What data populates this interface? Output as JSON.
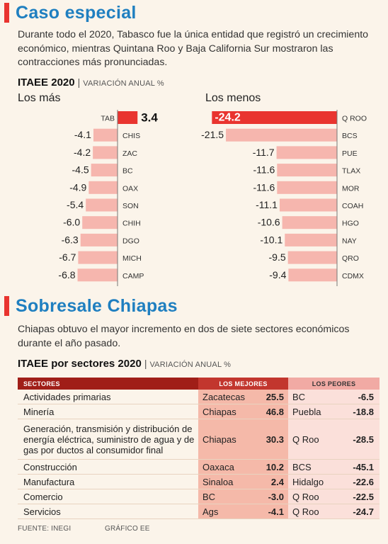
{
  "section1": {
    "title": "Caso especial",
    "lead": "Durante todo el 2020, Tabasco fue la única entidad que registró un crecimiento económico, mientras Quintana Roo y Baja California Sur mostraron las contracciones más pronunciadas."
  },
  "subhead1": {
    "bold": "ITAEE 2020",
    "sep": "|",
    "note": "VARIACIÓN ANUAL %"
  },
  "colors": {
    "bar_light": "#f6b6ae",
    "bar_strong": "#e9342f",
    "title_blue": "#1f7fc0",
    "accent_red": "#e9342f"
  },
  "chart_data": [
    {
      "type": "bar",
      "title": "Los más",
      "categories": [
        "TAB",
        "CHIS",
        "ZAC",
        "BC",
        "OAX",
        "SON",
        "CHIH",
        "DGO",
        "MICH",
        "CAMP"
      ],
      "values": [
        3.4,
        -4.1,
        -4.2,
        -4.5,
        -4.9,
        -5.4,
        -6.0,
        -6.3,
        -6.7,
        -6.8
      ],
      "labels": [
        "3.4",
        "-4.1",
        "-4.2",
        "-4.5",
        "-4.9",
        "-5.4",
        "-6.0",
        "-6.3",
        "-6.7",
        "-6.8"
      ]
    },
    {
      "type": "bar",
      "title": "Los menos",
      "categories": [
        "Q ROO",
        "BCS",
        "PUE",
        "TLAX",
        "MOR",
        "COAH",
        "HGO",
        "NAY",
        "QRO",
        "CDMX"
      ],
      "values": [
        -24.2,
        -21.5,
        -11.7,
        -11.6,
        -11.6,
        -11.1,
        -10.6,
        -10.1,
        -9.5,
        -9.4
      ],
      "labels": [
        "-24.2",
        "-21.5",
        "-11.7",
        "-11.6",
        "-11.6",
        "-11.1",
        "-10.6",
        "-10.1",
        "-9.5",
        "-9.4"
      ]
    }
  ],
  "section2": {
    "title": "Sobresale Chiapas",
    "lead": "Chiapas obtuvo el mayor incremento en dos de siete sectores económicos durante el año pasado."
  },
  "subhead2": {
    "bold": "ITAEE por sectores 2020",
    "sep": "|",
    "note": "VARIACIÓN ANUAL %"
  },
  "table": {
    "headers": {
      "sectors": "SECTORES",
      "best": "LOS MEJORES",
      "worst": "LOS PEORES"
    },
    "rows": [
      {
        "sector": "Actividades primarias",
        "best_state": "Zacatecas",
        "best_value": "25.5",
        "worst_state": "BC",
        "worst_value": "-6.5"
      },
      {
        "sector": "Minería",
        "best_state": "Chiapas",
        "best_value": "46.8",
        "worst_state": "Puebla",
        "worst_value": "-18.8"
      },
      {
        "sector": "Generación, transmisión y distribución de energía eléctrica, suministro de agua y de gas por ductos al consumidor final",
        "best_state": "Chiapas",
        "best_value": "30.3",
        "worst_state": "Q Roo",
        "worst_value": "-28.5"
      },
      {
        "sector": "Construcción",
        "best_state": "Oaxaca",
        "best_value": "10.2",
        "worst_state": "BCS",
        "worst_value": "-45.1"
      },
      {
        "sector": "Manufactura",
        "best_state": "Sinaloa",
        "best_value": "2.4",
        "worst_state": "Hidalgo",
        "worst_value": "-22.6"
      },
      {
        "sector": "Comercio",
        "best_state": "BC",
        "best_value": "-3.0",
        "worst_state": "Q Roo",
        "worst_value": "-22.5"
      },
      {
        "sector": "Servicios",
        "best_state": "Ags",
        "best_value": "-4.1",
        "worst_state": "Q Roo",
        "worst_value": "-24.7"
      }
    ]
  },
  "footer": {
    "source": "FUENTE: INEGI",
    "credit": "GRÁFICO EE"
  }
}
